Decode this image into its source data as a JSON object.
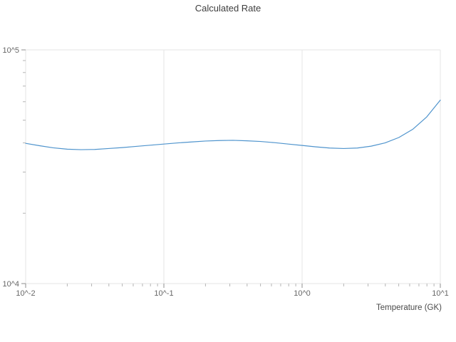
{
  "chart": {
    "title": "Calculated Rate",
    "x_axis_title": "Temperature (GK)",
    "x_tick_labels": [
      "10^-2",
      "10^-1",
      "10^0",
      "10^1"
    ],
    "y_tick_labels": [
      "10^4",
      "10^5"
    ],
    "line_color": "#4f94cd",
    "grid_color": "#e6e6e6",
    "major_tick_color": "#8f8f8f",
    "minor_tick_color": "#b4b4b4",
    "background_color": "#ffffff"
  },
  "chart_data": {
    "type": "line",
    "title": "Calculated Rate",
    "xlabel": "Temperature (GK)",
    "ylabel": "",
    "x_scale": "log",
    "y_scale": "log",
    "xlim": [
      0.01,
      10
    ],
    "ylim": [
      10000,
      100000
    ],
    "grid": true,
    "legend": "none",
    "series_name": "Calculated Rate",
    "x": [
      0.01,
      0.0126,
      0.0158,
      0.02,
      0.0251,
      0.0316,
      0.0398,
      0.0501,
      0.0631,
      0.0794,
      0.1,
      0.126,
      0.158,
      0.2,
      0.251,
      0.316,
      0.398,
      0.501,
      0.631,
      0.794,
      1.0,
      1.26,
      1.58,
      2.0,
      2.51,
      3.16,
      3.98,
      5.01,
      6.31,
      7.94,
      10.0
    ],
    "y": [
      39811,
      38905,
      38107,
      37584,
      37411,
      37497,
      37844,
      38194,
      38637,
      39083,
      39537,
      39994,
      40365,
      40738,
      40926,
      41020,
      40832,
      40551,
      40087,
      39537,
      38994,
      38459,
      38019,
      37844,
      38019,
      38726,
      39994,
      42170,
      45709,
      51523,
      60954
    ]
  }
}
